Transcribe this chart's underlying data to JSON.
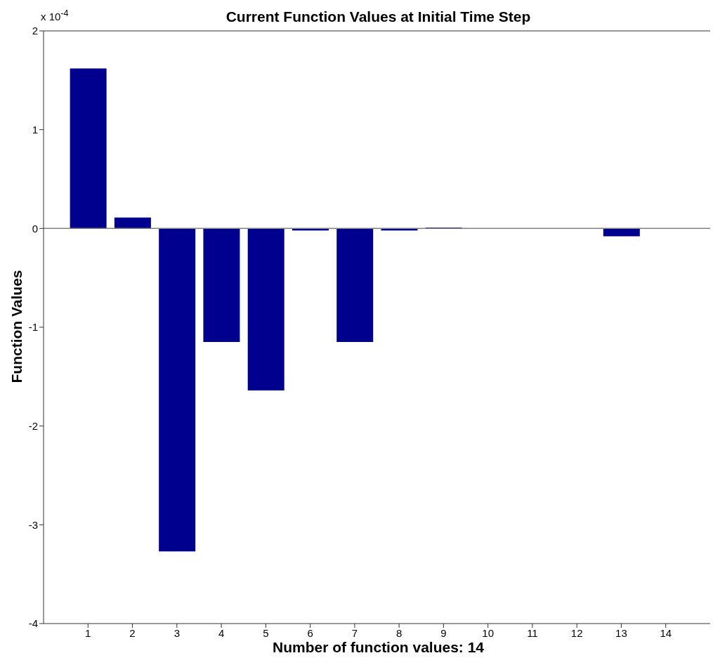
{
  "chart_data": {
    "type": "bar",
    "title": "Current Function Values at Initial Time Step",
    "xlabel": "Number of function values: 14",
    "ylabel": "Function Values",
    "annotations": [
      "x 10$^{-4}$"
    ],
    "x": [
      1,
      2,
      3,
      4,
      5,
      6,
      7,
      8,
      9,
      10,
      11,
      12,
      13,
      14
    ],
    "values": [
      1.62,
      0.11,
      -3.27,
      -1.15,
      -1.64,
      -0.02,
      -1.15,
      -0.02,
      0.01,
      0,
      0,
      0,
      -0.08,
      0
    ],
    "color": "#00008f",
    "xlim": [
      0,
      15
    ],
    "xticks": [
      1,
      2,
      3,
      4,
      5,
      6,
      7,
      8,
      9,
      10,
      11,
      12,
      13,
      14
    ],
    "ylim": [
      -4,
      2
    ],
    "yticks": [
      -4,
      -3,
      -2,
      -1,
      0,
      1,
      2
    ],
    "ref_lines": [
      {
        "axis": "y",
        "value": 0,
        "color": "#808080"
      }
    ]
  }
}
